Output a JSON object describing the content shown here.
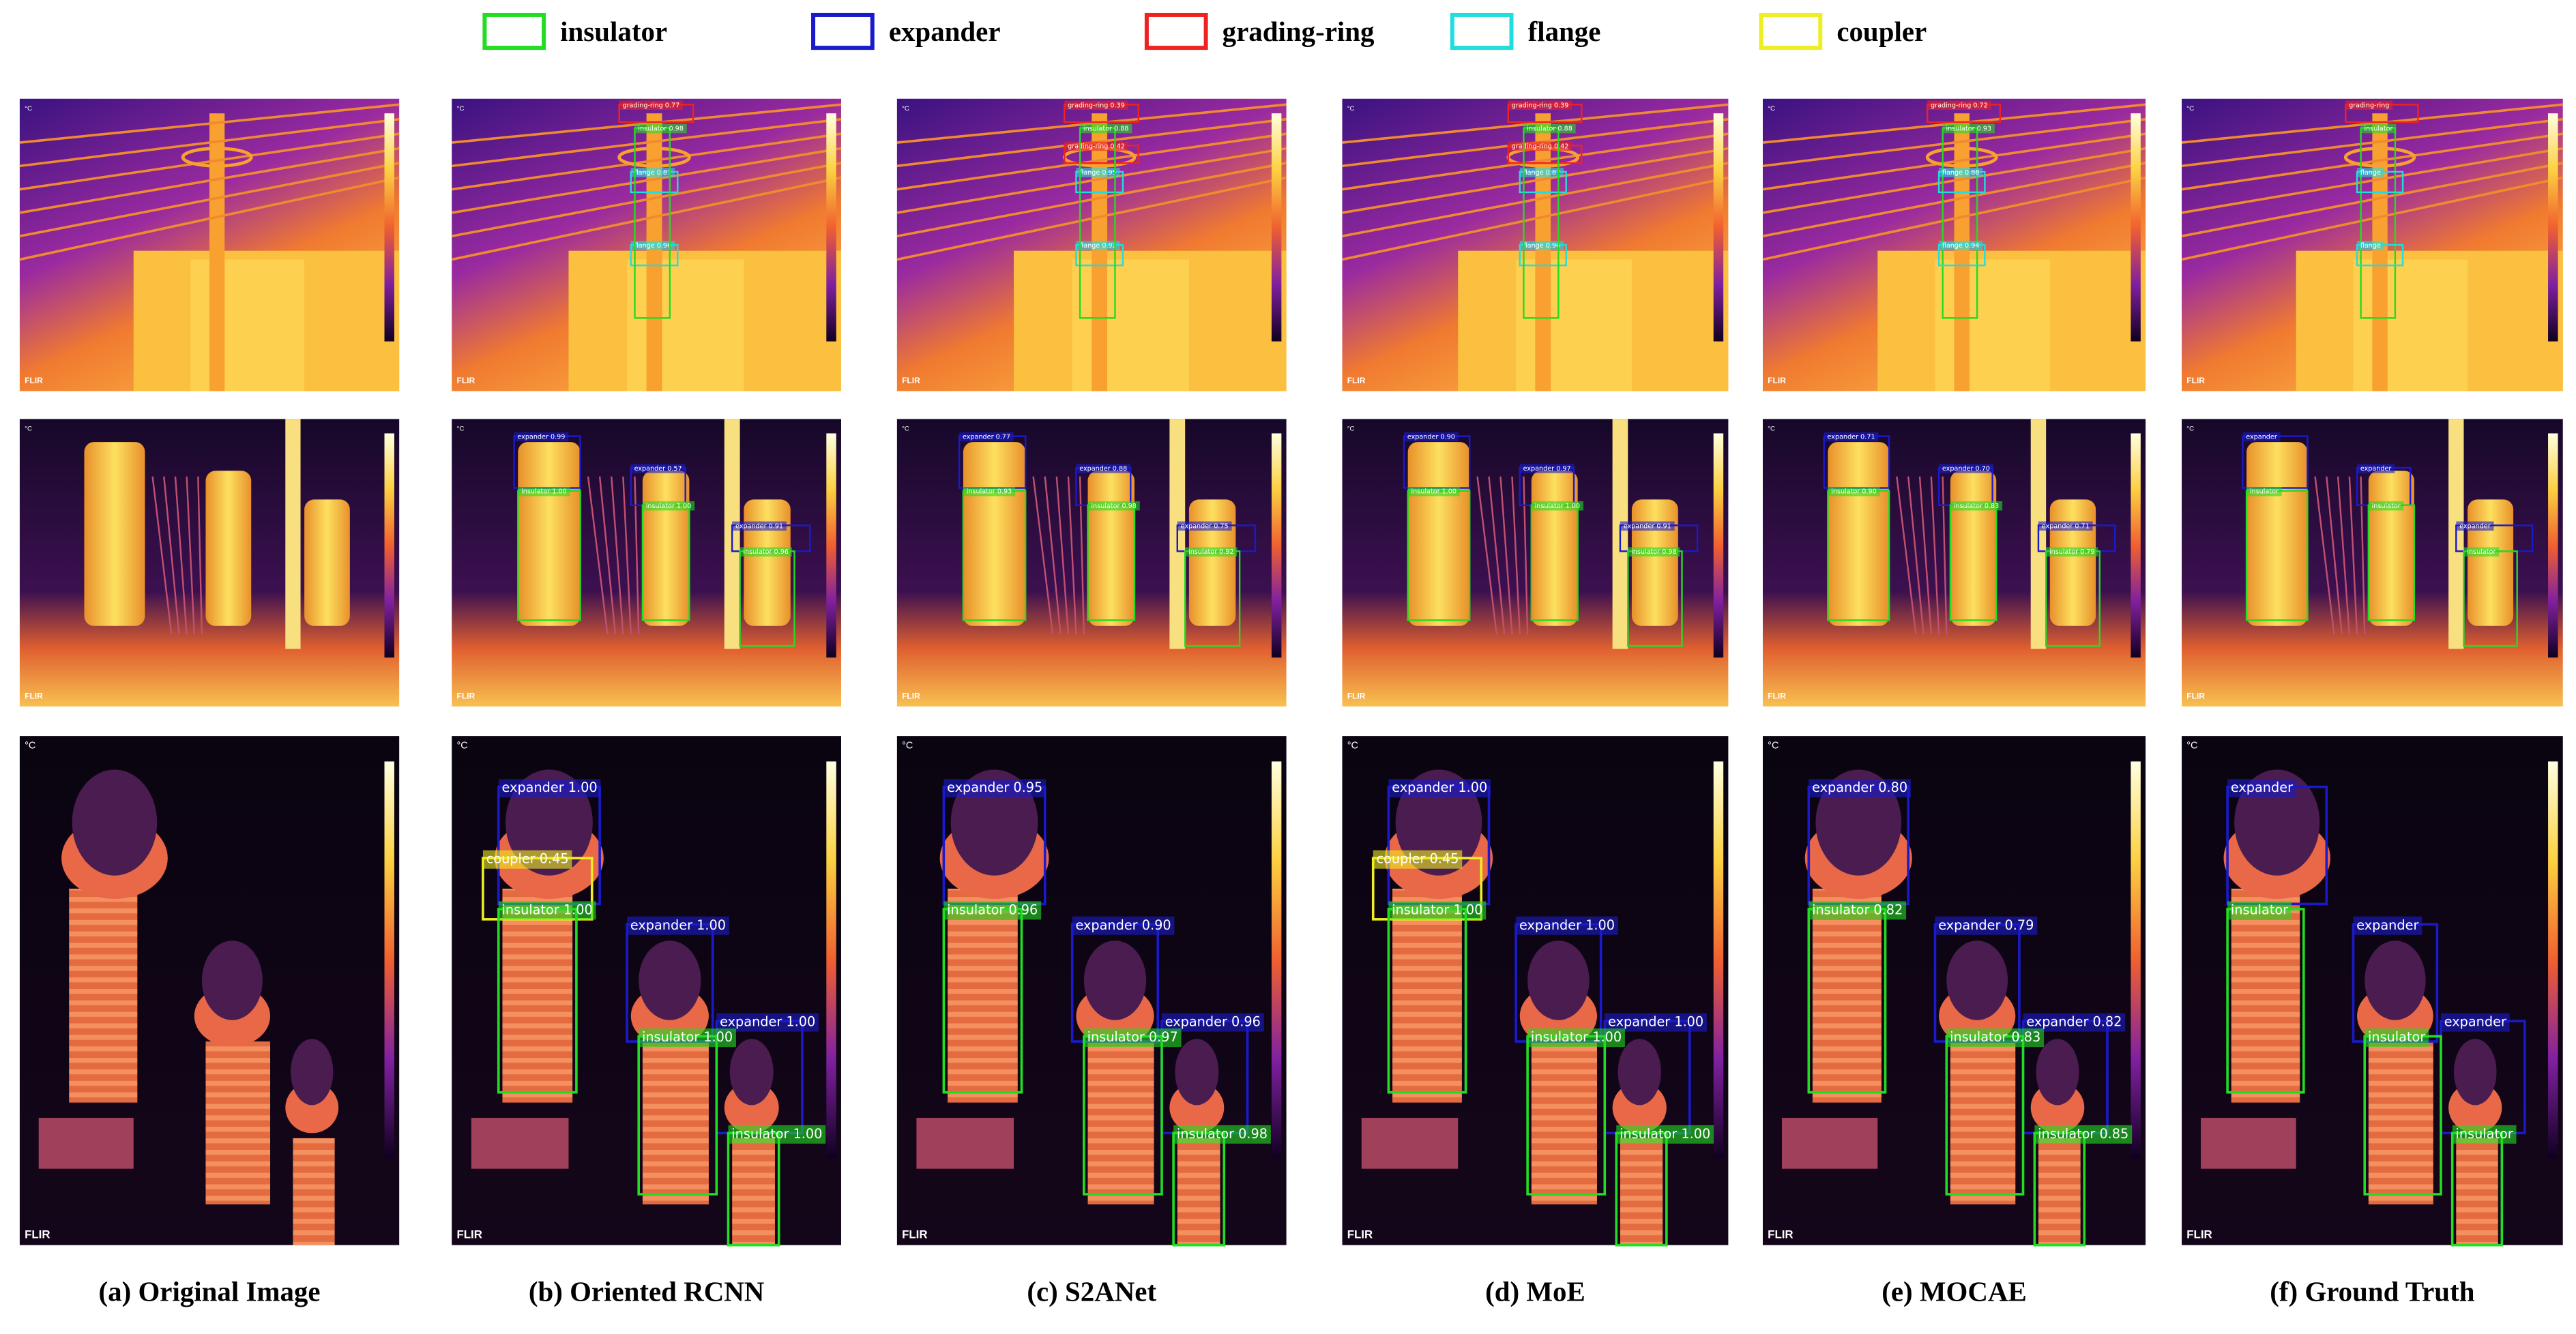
{
  "legend": [
    {
      "label": "insulator",
      "color": "#22dd22"
    },
    {
      "label": "expander",
      "color": "#1a1acc"
    },
    {
      "label": "grading-ring",
      "color": "#ee2222"
    },
    {
      "label": "flange",
      "color": "#22dddd"
    },
    {
      "label": "coupler",
      "color": "#eeee22"
    }
  ],
  "image_marks": {
    "unit": "°C",
    "logo": "FLIR"
  },
  "columns": [
    {
      "caption": "(a) Original Image",
      "rows": [
        {
          "detections": []
        },
        {
          "detections": []
        },
        {
          "detections": []
        }
      ]
    },
    {
      "caption": "(b) Oriented RCNN",
      "rows": [
        {
          "detections": [
            {
              "class": "grading-ring",
              "label": "grading-ring 0.77"
            },
            {
              "class": "flange",
              "label": "flange 0.87"
            },
            {
              "class": "flange",
              "label": "flange 0.96"
            },
            {
              "class": "insulator",
              "label": "insulator 0.98"
            }
          ]
        },
        {
          "detections": [
            {
              "class": "expander",
              "label": "expander 0.99"
            },
            {
              "class": "insulator",
              "label": "insulator 1.00"
            },
            {
              "class": "expander",
              "label": "expander 0.57"
            },
            {
              "class": "insulator",
              "label": "insulator 1.00"
            },
            {
              "class": "expander",
              "label": "expander 0.91"
            },
            {
              "class": "insulator",
              "label": "insulator 0.96"
            }
          ]
        },
        {
          "detections": [
            {
              "class": "expander",
              "label": "expander 1.00"
            },
            {
              "class": "coupler",
              "label": "coupler 0.45"
            },
            {
              "class": "insulator",
              "label": "insulator 1.00"
            },
            {
              "class": "expander",
              "label": "expander 1.00"
            },
            {
              "class": "expander",
              "label": "expander 1.00"
            },
            {
              "class": "insulator",
              "label": "insulator 1.00"
            },
            {
              "class": "insulator",
              "label": "insulator 1.00"
            }
          ]
        }
      ]
    },
    {
      "caption": "(c) S2ANet",
      "rows": [
        {
          "detections": [
            {
              "class": "grading-ring",
              "label": "grading-ring 0.39"
            },
            {
              "class": "grading-ring",
              "label": "grading-ring 0.42"
            },
            {
              "class": "flange",
              "label": "flange 0.95"
            },
            {
              "class": "flange",
              "label": "flange 0.92"
            },
            {
              "class": "insulator",
              "label": "insulator 0.88"
            }
          ]
        },
        {
          "detections": [
            {
              "class": "expander",
              "label": "expander 0.77"
            },
            {
              "class": "insulator",
              "label": "insulator 0.93"
            },
            {
              "class": "expander",
              "label": "expander 0.88"
            },
            {
              "class": "insulator",
              "label": "insulator 0.98"
            },
            {
              "class": "expander",
              "label": "expander 0.75"
            },
            {
              "class": "insulator",
              "label": "insulator 0.92"
            }
          ]
        },
        {
          "detections": [
            {
              "class": "expander",
              "label": "expander 0.95"
            },
            {
              "class": "insulator",
              "label": "insulator 0.96"
            },
            {
              "class": "expander",
              "label": "expander 0.90"
            },
            {
              "class": "expander",
              "label": "expander 0.96"
            },
            {
              "class": "insulator",
              "label": "insulator 0.97"
            },
            {
              "class": "insulator",
              "label": "insulator 0.98"
            }
          ]
        }
      ]
    },
    {
      "caption": "(d) MoE",
      "rows": [
        {
          "detections": [
            {
              "class": "grading-ring",
              "label": "grading-ring 0.39"
            },
            {
              "class": "grading-ring",
              "label": "grading-ring 0.42"
            },
            {
              "class": "flange",
              "label": "flange 0.87"
            },
            {
              "class": "flange",
              "label": "flange 0.96"
            },
            {
              "class": "insulator",
              "label": "insulator 0.88"
            }
          ]
        },
        {
          "detections": [
            {
              "class": "expander",
              "label": "expander 0.90"
            },
            {
              "class": "insulator",
              "label": "insulator 1.00"
            },
            {
              "class": "expander",
              "label": "expander 0.97"
            },
            {
              "class": "insulator",
              "label": "insulator 1.00"
            },
            {
              "class": "expander",
              "label": "expander 0.91"
            },
            {
              "class": "insulator",
              "label": "insulator 0.98"
            }
          ]
        },
        {
          "detections": [
            {
              "class": "expander",
              "label": "expander 1.00"
            },
            {
              "class": "coupler",
              "label": "coupler 0.45"
            },
            {
              "class": "insulator",
              "label": "insulator 1.00"
            },
            {
              "class": "expander",
              "label": "expander 1.00"
            },
            {
              "class": "expander",
              "label": "expander 1.00"
            },
            {
              "class": "insulator",
              "label": "insulator 1.00"
            },
            {
              "class": "insulator",
              "label": "insulator 1.00"
            }
          ]
        }
      ]
    },
    {
      "caption": "(e) MOCAE",
      "rows": [
        {
          "detections": [
            {
              "class": "insulator",
              "label": "insulator 0.93"
            },
            {
              "class": "grading-ring",
              "label": "grading-ring 0.72"
            },
            {
              "class": "flange",
              "label": "flange 0.88"
            },
            {
              "class": "flange",
              "label": "flange 0.94"
            }
          ]
        },
        {
          "detections": [
            {
              "class": "expander",
              "label": "expander 0.71"
            },
            {
              "class": "insulator",
              "label": "insulator 0.90"
            },
            {
              "class": "expander",
              "label": "expander 0.70"
            },
            {
              "class": "insulator",
              "label": "insulator 0.83"
            },
            {
              "class": "expander",
              "label": "expander 0.71"
            },
            {
              "class": "insulator",
              "label": "insulator 0.79"
            }
          ]
        },
        {
          "detections": [
            {
              "class": "expander",
              "label": "expander 0.80"
            },
            {
              "class": "insulator",
              "label": "insulator 0.82"
            },
            {
              "class": "expander",
              "label": "expander 0.79"
            },
            {
              "class": "expander",
              "label": "expander 0.82"
            },
            {
              "class": "insulator",
              "label": "insulator 0.83"
            },
            {
              "class": "insulator",
              "label": "insulator 0.85"
            }
          ]
        }
      ]
    },
    {
      "caption": "(f) Ground Truth",
      "rows": [
        {
          "detections": [
            {
              "class": "insulator",
              "label": "insulator"
            },
            {
              "class": "grading-ring",
              "label": "grading-ring"
            },
            {
              "class": "flange",
              "label": "flange"
            },
            {
              "class": "flange",
              "label": "flange"
            }
          ]
        },
        {
          "detections": [
            {
              "class": "expander",
              "label": "expander"
            },
            {
              "class": "insulator",
              "label": "insulator"
            },
            {
              "class": "expander",
              "label": "expander"
            },
            {
              "class": "insulator",
              "label": "insulator"
            },
            {
              "class": "expander",
              "label": "expander"
            },
            {
              "class": "insulator",
              "label": "insulator"
            }
          ]
        },
        {
          "detections": [
            {
              "class": "expander",
              "label": "expander"
            },
            {
              "class": "insulator",
              "label": "insulator"
            },
            {
              "class": "expander",
              "label": "expander"
            },
            {
              "class": "expander",
              "label": "expander"
            },
            {
              "class": "insulator",
              "label": "insulator"
            },
            {
              "class": "insulator",
              "label": "insulator"
            }
          ]
        }
      ]
    }
  ]
}
